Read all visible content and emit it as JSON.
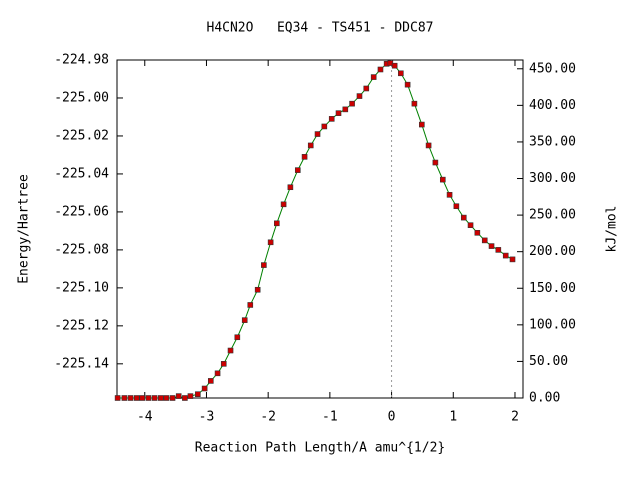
{
  "chart_data": {
    "type": "line",
    "title": "H4CN2O   EQ34 - TS451 - DDC87",
    "xlabel": "Reaction Path Length/A amu^{1/2}",
    "ylabel": "Energy/Hartree",
    "y2label": "kJ/mol",
    "color": "#008000",
    "marker_color": "#cc0000",
    "vline": 0,
    "xlim": [
      -4.45,
      2.13
    ],
    "xticks": [
      -4,
      -3,
      -2,
      -1,
      0,
      1,
      2
    ],
    "ylim": [
      -225.158,
      -224.98
    ],
    "yticks": [
      -224.98,
      {
        "value": -225,
        "label": "-225.00"
      },
      -225.02,
      -225.04,
      -225.06,
      -225.08,
      {
        "value": -225.1,
        "label": "-225.10"
      },
      -225.12,
      -225.14
    ],
    "y2lim": [
      0,
      462
    ],
    "y2ticks": [
      {
        "value": 0,
        "label": "0.00"
      },
      {
        "value": 50,
        "label": "50.00"
      },
      {
        "value": 100,
        "label": "100.00"
      },
      {
        "value": 150,
        "label": "150.00"
      },
      {
        "value": 200,
        "label": "200.00"
      },
      {
        "value": 250,
        "label": "250.00"
      },
      {
        "value": 300,
        "label": "300.00"
      },
      {
        "value": 350,
        "label": "350.00"
      },
      {
        "value": 400,
        "label": "400.00"
      },
      {
        "value": 450,
        "label": "450.00"
      }
    ],
    "x": [
      -4.44,
      -4.33,
      -4.23,
      -4.13,
      -4.04,
      -3.94,
      -3.84,
      -3.74,
      -3.65,
      -3.55,
      -3.45,
      -3.35,
      -3.26,
      -3.14,
      -3.03,
      -2.93,
      -2.82,
      -2.72,
      -2.61,
      -2.5,
      -2.38,
      -2.29,
      -2.17,
      -2.07,
      -1.96,
      -1.86,
      -1.75,
      -1.64,
      -1.52,
      -1.41,
      -1.31,
      -1.2,
      -1.09,
      -0.97,
      -0.86,
      -0.75,
      -0.64,
      -0.52,
      -0.41,
      -0.29,
      -0.18,
      -0.08,
      -0.02,
      0.05,
      0.15,
      0.26,
      0.37,
      0.49,
      0.6,
      0.71,
      0.83,
      0.94,
      1.05,
      1.17,
      1.28,
      1.39,
      1.51,
      1.62,
      1.73,
      1.85,
      1.96
    ],
    "values": [
      -225.158,
      -225.158,
      -225.158,
      -225.158,
      -225.158,
      -225.158,
      -225.158,
      -225.158,
      -225.158,
      -225.158,
      -225.157,
      -225.158,
      -225.157,
      -225.156,
      -225.153,
      -225.149,
      -225.145,
      -225.14,
      -225.133,
      -225.126,
      -225.117,
      -225.109,
      -225.101,
      -225.088,
      -225.076,
      -225.066,
      -225.056,
      -225.047,
      -225.038,
      -225.031,
      -225.025,
      -225.019,
      -225.015,
      -225.011,
      -225.008,
      -225.006,
      -225.003,
      -224.999,
      -224.995,
      -224.989,
      -224.985,
      -224.982,
      -224.9816,
      -224.983,
      -224.987,
      -224.993,
      -225.003,
      -225.014,
      -225.025,
      -225.034,
      -225.043,
      -225.051,
      -225.057,
      -225.063,
      -225.067,
      -225.071,
      -225.075,
      -225.078,
      -225.08,
      -225.083,
      -225.085
    ]
  }
}
